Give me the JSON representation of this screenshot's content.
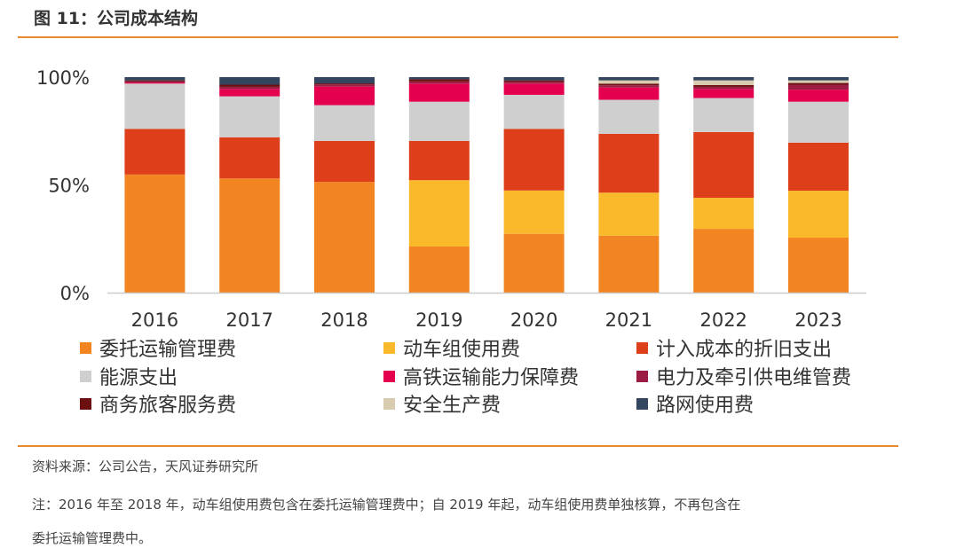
{
  "title": "图 11：公司成本结构",
  "source": "资料来源：公司公告，天风证券研究所",
  "note_line1": "注：2016 年至 2018 年，动车组使用费包含在委托运输管理费中；自 2019 年起，动车组使用费单独核算，不再包含在",
  "note_line2": "委托运输管理费中。",
  "chart_data": {
    "type": "bar",
    "stacked": true,
    "title": "公司成本结构",
    "xlabel": "",
    "ylabel": "",
    "ylim": [
      0,
      100
    ],
    "yticks": [
      "0%",
      "50%",
      "100%"
    ],
    "ytick_values": [
      0,
      50,
      100
    ],
    "categories": [
      "2016",
      "2017",
      "2018",
      "2019",
      "2020",
      "2021",
      "2022",
      "2023"
    ],
    "legend_position": "bottom",
    "series": [
      {
        "name": "委托运输管理费",
        "color": "#f28522",
        "values": [
          54.8,
          53.0,
          51.4,
          21.4,
          27.3,
          26.4,
          29.6,
          25.5
        ]
      },
      {
        "name": "动车组使用费",
        "color": "#f9b92b",
        "values": [
          0,
          0,
          0,
          30.8,
          20.1,
          20.0,
          14.4,
          21.8
        ]
      },
      {
        "name": "计入成本的折旧支出",
        "color": "#dc3f1a",
        "values": [
          21.2,
          19.1,
          19.0,
          18.2,
          28.6,
          27.3,
          30.5,
          22.3
        ]
      },
      {
        "name": "能源支出",
        "color": "#d0cfd0",
        "values": [
          21.0,
          19.0,
          16.6,
          18.2,
          15.8,
          15.8,
          15.8,
          19.0
        ]
      },
      {
        "name": "高铁运输能力保障费",
        "color": "#e4004f",
        "values": [
          0.5,
          3.4,
          8.6,
          8.4,
          5.2,
          5.7,
          4.2,
          5.6
        ]
      },
      {
        "name": "电力及牵引供电维管费",
        "color": "#9b1d43",
        "values": [
          0.5,
          1.0,
          1.0,
          1.0,
          0.8,
          1.0,
          1.0,
          2.3
        ]
      },
      {
        "name": "商务旅客服务费",
        "color": "#6b0f10",
        "values": [
          0.5,
          1.0,
          0.5,
          1.0,
          0.7,
          0.8,
          0.8,
          0.8
        ]
      },
      {
        "name": "安全生产费",
        "color": "#d9cbb0",
        "values": [
          0,
          0,
          0,
          0,
          0,
          1.5,
          2.2,
          1.2
        ]
      },
      {
        "name": "路网使用费",
        "color": "#34465f",
        "values": [
          1.5,
          3.5,
          2.9,
          1.0,
          1.5,
          1.5,
          1.5,
          1.5
        ]
      }
    ]
  }
}
